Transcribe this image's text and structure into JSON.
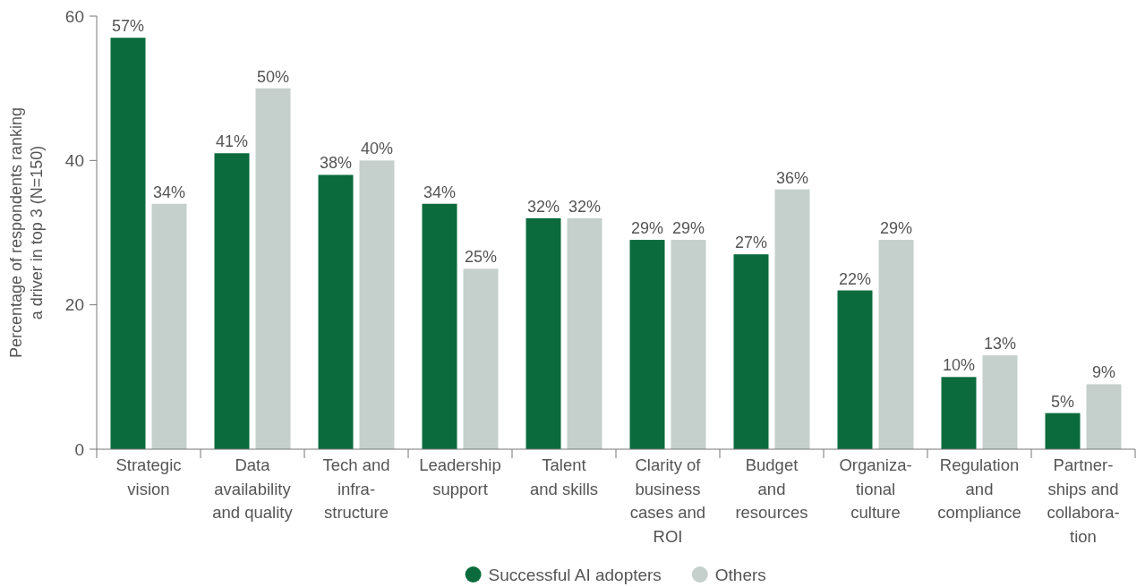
{
  "chart_data": {
    "type": "bar",
    "ylabel": "Percentage of respondents ranking\na driver in top 3 (N=150)",
    "categories": [
      "Strategic\nvision",
      "Data\navailability\nand quality",
      "Tech and\ninfra-\nstructure",
      "Leadership\nsupport",
      "Talent\nand skills",
      "Clarity of\nbusiness\ncases and\nROI",
      "Budget\nand\nresources",
      "Organiza-\ntional\nculture",
      "Regulation\nand\ncompliance",
      "Partner-\nships and\ncollabora-\ntion"
    ],
    "series": [
      {
        "name": "Successful AI adopters",
        "color": "#0b6b3d",
        "values": [
          57,
          41,
          38,
          34,
          32,
          29,
          27,
          22,
          10,
          5
        ],
        "value_labels": [
          "57%",
          "41%",
          "38%",
          "34%",
          "32%",
          "29%",
          "27%",
          "22%",
          "10%",
          "5%"
        ]
      },
      {
        "name": "Others",
        "color": "#c5cfcc",
        "values": [
          34,
          50,
          40,
          25,
          32,
          29,
          36,
          29,
          13,
          9
        ],
        "value_labels": [
          "34%",
          "50%",
          "40%",
          "25%",
          "32%",
          "29%",
          "36%",
          "29%",
          "13%",
          "9%"
        ]
      }
    ],
    "ylim": [
      0,
      60
    ],
    "yticks": [
      0,
      20,
      40,
      60
    ],
    "grid": false,
    "legend": "bottom"
  }
}
